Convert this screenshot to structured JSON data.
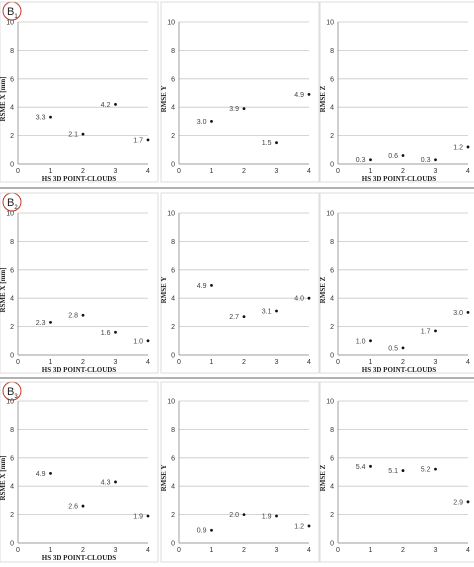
{
  "colors": {
    "panel_circle": "#c0392b",
    "grid": "#c8c8c8",
    "point": "#111111"
  },
  "rows": [
    {
      "label_main": "B",
      "label_sub": "1"
    },
    {
      "label_main": "B",
      "label_sub": "2"
    },
    {
      "label_main": "B",
      "label_sub": "3"
    }
  ],
  "chart_data": [
    {
      "type": "scatter",
      "ylabel": "RSME X [mm]",
      "xlabel": "HS 3D POINT-CLOUDS",
      "xlim": [
        0,
        4
      ],
      "ylim": [
        0,
        10
      ],
      "xticks": [
        "0",
        "1",
        "2",
        "3",
        "4"
      ],
      "yticks": [
        "0",
        "2",
        "4",
        "6",
        "8",
        "10"
      ],
      "x": [
        1,
        2,
        3,
        4
      ],
      "y": [
        3.3,
        2.1,
        4.2,
        1.7
      ],
      "labels": [
        "3.3",
        "2.1",
        "4.2",
        "1.7"
      ]
    },
    {
      "type": "scatter",
      "ylabel": "RMSE Y",
      "xlabel": "",
      "xlim": [
        0,
        4
      ],
      "ylim": [
        0,
        10
      ],
      "xticks": [
        "0",
        "1",
        "2",
        "3",
        "4"
      ],
      "yticks": [
        "0",
        "2",
        "4",
        "6",
        "8",
        "10"
      ],
      "x": [
        1,
        2,
        3,
        4
      ],
      "y": [
        3.0,
        3.9,
        1.5,
        4.9
      ],
      "labels": [
        "3.0",
        "3.9",
        "1.5",
        "4.9"
      ]
    },
    {
      "type": "scatter",
      "ylabel": "RMSE Z",
      "xlabel": "HS 3D POINT-CLOUDS",
      "xlim": [
        0,
        4
      ],
      "ylim": [
        0,
        10
      ],
      "xticks": [
        "0",
        "1",
        "2",
        "3",
        "4"
      ],
      "yticks": [
        "0",
        "2",
        "4",
        "6",
        "8",
        "10"
      ],
      "x": [
        1,
        2,
        3,
        4
      ],
      "y": [
        0.3,
        0.6,
        0.3,
        1.2
      ],
      "labels": [
        "0.3",
        "0.6",
        "0.3",
        "1.2"
      ]
    },
    {
      "type": "scatter",
      "ylabel": "RSME X [mm]",
      "xlabel": "HS 3D POINT-CLOUDS",
      "xlim": [
        0,
        4
      ],
      "ylim": [
        0,
        10
      ],
      "xticks": [
        "0",
        "1",
        "2",
        "3",
        "4"
      ],
      "yticks": [
        "0",
        "2",
        "4",
        "6",
        "8",
        "10"
      ],
      "x": [
        1,
        2,
        3,
        4
      ],
      "y": [
        2.3,
        2.8,
        1.6,
        1.0
      ],
      "labels": [
        "2.3",
        "2.8",
        "1.6",
        "1.0"
      ]
    },
    {
      "type": "scatter",
      "ylabel": "RMSE Y",
      "xlabel": "",
      "xlim": [
        0,
        4
      ],
      "ylim": [
        0,
        10
      ],
      "xticks": [
        "0",
        "1",
        "2",
        "3",
        "4"
      ],
      "yticks": [
        "0",
        "2",
        "4",
        "6",
        "8",
        "10"
      ],
      "x": [
        1,
        2,
        3,
        4
      ],
      "y": [
        4.9,
        2.7,
        3.1,
        4.0
      ],
      "labels": [
        "4.9",
        "2.7",
        "3.1",
        "4.0"
      ]
    },
    {
      "type": "scatter",
      "ylabel": "RMSE Z",
      "xlabel": "HS 3D POINT-CLOUDS",
      "xlim": [
        0,
        4
      ],
      "ylim": [
        0,
        10
      ],
      "xticks": [
        "0",
        "1",
        "2",
        "3",
        "4"
      ],
      "yticks": [
        "0",
        "2",
        "4",
        "6",
        "8",
        "10"
      ],
      "x": [
        1,
        2,
        3,
        4
      ],
      "y": [
        1.0,
        0.5,
        1.7,
        3.0
      ],
      "labels": [
        "1.0",
        "0.5",
        "1.7",
        "3.0"
      ]
    },
    {
      "type": "scatter",
      "ylabel": "RSME X [mm]",
      "xlabel": "HS 3D POINT-CLOUDS",
      "xlim": [
        0,
        4
      ],
      "ylim": [
        0,
        10
      ],
      "xticks": [
        "0",
        "1",
        "2",
        "3",
        "4"
      ],
      "yticks": [
        "0",
        "2",
        "4",
        "6",
        "8",
        "10"
      ],
      "x": [
        1,
        2,
        3,
        4
      ],
      "y": [
        4.9,
        2.6,
        4.3,
        1.9
      ],
      "labels": [
        "4.9",
        "2.6",
        "4.3",
        "1.9"
      ]
    },
    {
      "type": "scatter",
      "ylabel": "RMSE Y",
      "xlabel": "",
      "xlim": [
        0,
        4
      ],
      "ylim": [
        0,
        10
      ],
      "xticks": [
        "0",
        "1",
        "2",
        "3",
        "4"
      ],
      "yticks": [
        "0",
        "2",
        "4",
        "6",
        "8",
        "10"
      ],
      "x": [
        1,
        2,
        3,
        4
      ],
      "y": [
        0.9,
        2.0,
        1.9,
        1.2
      ],
      "labels": [
        "0.9",
        "2.0",
        "1.9",
        "1.2"
      ]
    },
    {
      "type": "scatter",
      "ylabel": "RMSE Z",
      "xlabel": "",
      "xlim": [
        0,
        4
      ],
      "ylim": [
        0,
        10
      ],
      "xticks": [
        "0",
        "1",
        "2",
        "3",
        "4"
      ],
      "yticks": [
        "0",
        "2",
        "4",
        "6",
        "8",
        "10"
      ],
      "x": [
        1,
        2,
        3,
        4
      ],
      "y": [
        5.4,
        5.1,
        5.2,
        2.9
      ],
      "labels": [
        "5.4",
        "5.1",
        "5.2",
        "2.9"
      ]
    }
  ]
}
